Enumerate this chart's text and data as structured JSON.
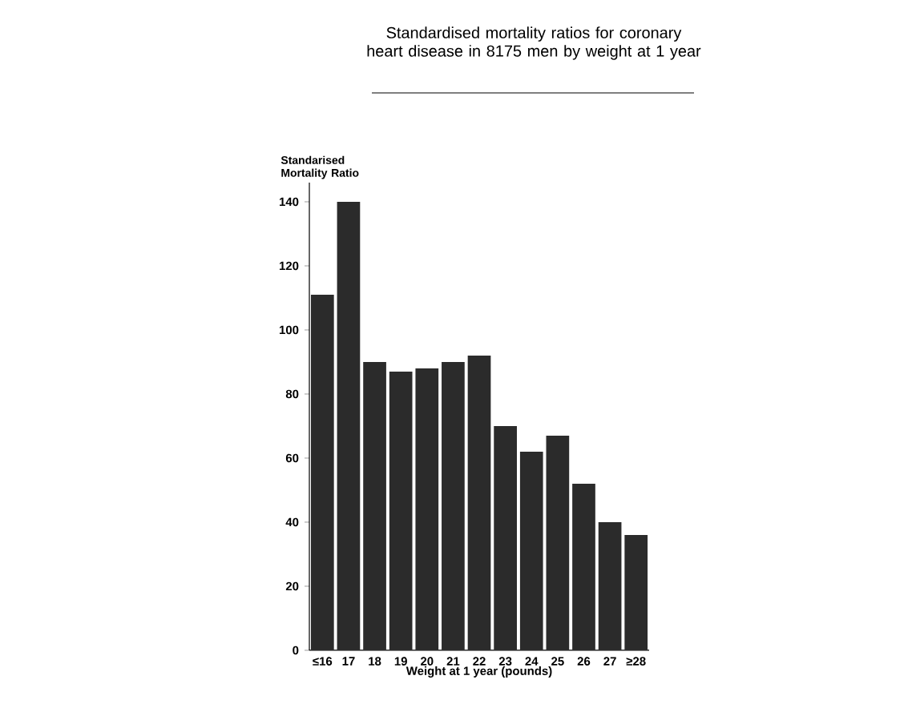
{
  "chart_data": {
    "type": "bar",
    "title": "Standardised mortality ratios for coronary heart disease in 8175 men by weight at 1 year",
    "ylabel": "Standarised Mortality Ratio",
    "xlabel": "Weight at 1 year (pounds)",
    "categories": [
      "≤16",
      "17",
      "18",
      "19",
      "20",
      "21",
      "22",
      "23",
      "24",
      "25",
      "26",
      "27",
      "≥28"
    ],
    "values": [
      111,
      140,
      90,
      87,
      88,
      90,
      92,
      70,
      62,
      67,
      52,
      40,
      36
    ],
    "color": "#2b2b2b",
    "ylim": [
      0,
      146
    ],
    "yticks": [
      0,
      20,
      40,
      60,
      80,
      100,
      120,
      140
    ],
    "grid": false
  }
}
